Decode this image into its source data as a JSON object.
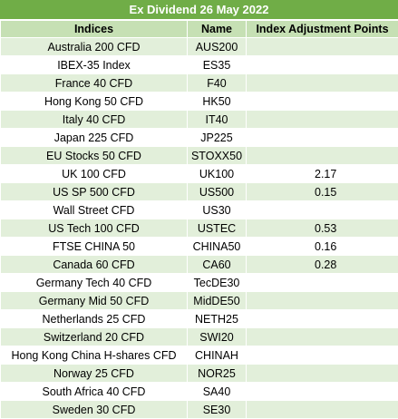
{
  "title": "Ex Dividend 26 May 2022",
  "headers": {
    "indices": "Indices",
    "name": "Name",
    "points": "Index Adjustment Points"
  },
  "rows": [
    {
      "index": "Australia 200 CFD",
      "name": "AUS200",
      "points": ""
    },
    {
      "index": "IBEX-35 Index",
      "name": "ES35",
      "points": ""
    },
    {
      "index": "France 40 CFD",
      "name": "F40",
      "points": ""
    },
    {
      "index": "Hong Kong 50 CFD",
      "name": "HK50",
      "points": ""
    },
    {
      "index": "Italy 40 CFD",
      "name": "IT40",
      "points": ""
    },
    {
      "index": "Japan 225 CFD",
      "name": "JP225",
      "points": ""
    },
    {
      "index": "EU Stocks 50 CFD",
      "name": "STOXX50",
      "points": ""
    },
    {
      "index": "UK 100 CFD",
      "name": "UK100",
      "points": "2.17"
    },
    {
      "index": "US SP 500 CFD",
      "name": "US500",
      "points": "0.15"
    },
    {
      "index": "Wall Street CFD",
      "name": "US30",
      "points": ""
    },
    {
      "index": "US Tech 100 CFD",
      "name": "USTEC",
      "points": "0.53"
    },
    {
      "index": "FTSE CHINA 50",
      "name": "CHINA50",
      "points": "0.16"
    },
    {
      "index": "Canada 60 CFD",
      "name": "CA60",
      "points": "0.28"
    },
    {
      "index": "Germany Tech 40 CFD",
      "name": "TecDE30",
      "points": ""
    },
    {
      "index": "Germany Mid 50 CFD",
      "name": "MidDE50",
      "points": ""
    },
    {
      "index": "Netherlands 25 CFD",
      "name": "NETH25",
      "points": ""
    },
    {
      "index": "Switzerland 20 CFD",
      "name": "SWI20",
      "points": ""
    },
    {
      "index": "Hong Kong China H-shares CFD",
      "name": "CHINAH",
      "points": ""
    },
    {
      "index": "Norway 25 CFD",
      "name": "NOR25",
      "points": ""
    },
    {
      "index": "South Africa 40 CFD",
      "name": "SA40",
      "points": ""
    },
    {
      "index": "Sweden 30 CFD",
      "name": "SE30",
      "points": ""
    }
  ]
}
